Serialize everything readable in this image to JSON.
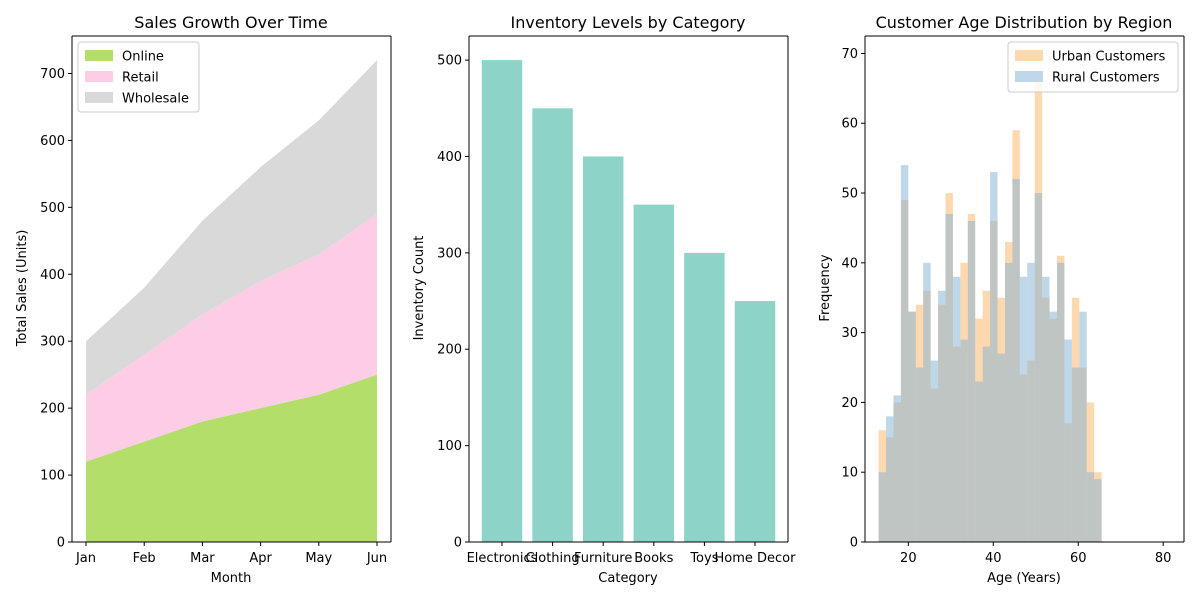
{
  "chart_data": [
    {
      "type": "area",
      "title": "Sales Growth Over Time",
      "xlabel": "Month",
      "ylabel": "Total Sales (Units)",
      "categories": [
        "Jan",
        "Feb",
        "Mar",
        "Apr",
        "May",
        "Jun"
      ],
      "stacked": true,
      "series": [
        {
          "name": "Online",
          "values": [
            120,
            150,
            180,
            200,
            220,
            250
          ],
          "color": "#b3de69"
        },
        {
          "name": "Retail",
          "values": [
            100,
            130,
            160,
            190,
            210,
            240
          ],
          "color": "#fccde5"
        },
        {
          "name": "Wholesale",
          "values": [
            80,
            100,
            140,
            170,
            200,
            230
          ],
          "color": "#d9d9d9"
        }
      ],
      "ylim": [
        0,
        756
      ],
      "yticks": [
        0,
        100,
        200,
        300,
        400,
        500,
        600,
        700
      ],
      "legend": "upper-left",
      "grid": false
    },
    {
      "type": "bar",
      "title": "Inventory Levels by Category",
      "xlabel": "Category",
      "ylabel": "Inventory Count",
      "categories": [
        "Electronics",
        "Clothing",
        "Furniture",
        "Books",
        "Toys",
        "Home Decor"
      ],
      "values": [
        500,
        450,
        400,
        350,
        300,
        250
      ],
      "color": "#8dd3c7",
      "ylim": [
        0,
        525
      ],
      "yticks": [
        0,
        100,
        200,
        300,
        400,
        500
      ],
      "grid": false
    },
    {
      "type": "histogram",
      "title": "Customer Age Distribution by Region",
      "xlabel": "Age (Years)",
      "ylabel": "Frequency",
      "bin_start": 13,
      "bin_width": 1.75,
      "series": [
        {
          "name": "Urban Customers",
          "color": "#fdb462",
          "values": [
            16,
            15,
            20,
            49,
            33,
            34,
            36,
            22,
            34,
            50,
            28,
            40,
            47,
            32,
            36,
            46,
            35,
            43,
            59,
            24,
            26,
            66,
            35,
            32,
            41,
            17,
            35,
            25,
            20,
            10
          ]
        },
        {
          "name": "Rural Customers",
          "color": "#80b1d3",
          "values": [
            10,
            18,
            21,
            54,
            33,
            25,
            40,
            26,
            36,
            47,
            38,
            29,
            46,
            23,
            28,
            53,
            27,
            40,
            52,
            38,
            40,
            50,
            38,
            33,
            40,
            29,
            25,
            33,
            10,
            9
          ]
        }
      ],
      "xlim": [
        9.8,
        84.9
      ],
      "ylim": [
        0,
        72.5
      ],
      "xticks": [
        20,
        40,
        60,
        80
      ],
      "yticks": [
        0,
        10,
        20,
        30,
        40,
        50,
        60,
        70
      ],
      "legend": "upper-right",
      "grid": false
    }
  ]
}
